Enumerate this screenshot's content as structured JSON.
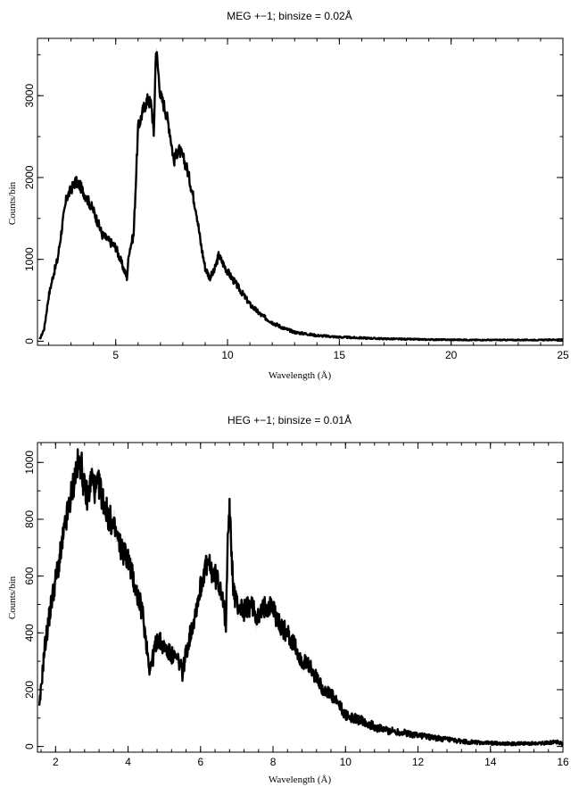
{
  "chart_data": [
    {
      "type": "line",
      "title": "MEG +−1; binsize = 0.02Å",
      "xlabel": "Wavelength (Å)",
      "ylabel": "Counts/bin",
      "xlim": [
        1.5,
        25
      ],
      "ylim": [
        -50,
        3700
      ],
      "xticks": [
        5,
        10,
        15,
        20,
        25
      ],
      "xtick_labels": [
        "5",
        "10",
        "15",
        "20",
        "25"
      ],
      "yticks": [
        0,
        1000,
        2000,
        3000
      ],
      "ytick_labels": [
        "0",
        "1000",
        "2000",
        "3000"
      ],
      "grid": false,
      "series": [
        {
          "x": [
            1.6,
            1.8,
            2.0,
            2.2,
            2.4,
            2.6,
            2.8,
            3.0,
            3.2,
            3.4,
            3.6,
            3.8,
            4.0,
            4.2,
            4.4,
            4.6,
            4.8,
            5.0,
            5.2,
            5.4,
            5.5,
            5.6,
            5.8,
            6.0,
            6.1,
            6.2,
            6.4,
            6.6,
            6.7,
            6.8,
            6.85,
            7.0,
            7.2,
            7.4,
            7.6,
            7.8,
            8.0,
            8.2,
            8.4,
            8.6,
            8.8,
            9.0,
            9.2,
            9.4,
            9.6,
            9.8,
            10.0,
            10.5,
            11.0,
            11.5,
            12.0,
            12.5,
            13.0,
            14.0,
            15.0,
            16.0,
            17.0,
            18.0,
            19.0,
            20.0,
            21.0,
            22.0,
            23.0,
            24.0,
            25.0
          ],
          "y": [
            20,
            150,
            550,
            800,
            1000,
            1400,
            1750,
            1850,
            1950,
            1900,
            1800,
            1700,
            1600,
            1450,
            1300,
            1250,
            1200,
            1150,
            1000,
            850,
            780,
            1100,
            1300,
            2600,
            2700,
            2800,
            2950,
            2900,
            2500,
            3600,
            3450,
            3000,
            2850,
            2600,
            2200,
            2350,
            2250,
            2100,
            1850,
            1600,
            1200,
            900,
            780,
            850,
            1050,
            950,
            850,
            650,
            450,
            320,
            230,
            160,
            110,
            70,
            50,
            40,
            30,
            25,
            20,
            18,
            15,
            15,
            15,
            15,
            20
          ]
        }
      ]
    },
    {
      "type": "line",
      "title": "HEG +−1; binsize = 0.01Å",
      "xlabel": "Wavelength (Å)",
      "ylabel": "Counts/bin",
      "xlim": [
        1.5,
        16
      ],
      "ylim": [
        -20,
        1070
      ],
      "xticks": [
        2,
        4,
        6,
        8,
        10,
        12,
        14,
        16
      ],
      "xtick_labels": [
        "2",
        "4",
        "6",
        "8",
        "10",
        "12",
        "14",
        "16"
      ],
      "yticks": [
        0,
        200,
        400,
        600,
        800,
        1000
      ],
      "ytick_labels": [
        "0",
        "200",
        "400",
        "600",
        "800",
        "1000"
      ],
      "grid": false,
      "series": [
        {
          "x": [
            1.55,
            1.7,
            1.9,
            2.1,
            2.3,
            2.5,
            2.6,
            2.7,
            2.8,
            2.9,
            3.0,
            3.1,
            3.2,
            3.4,
            3.6,
            3.8,
            4.0,
            4.2,
            4.4,
            4.5,
            4.6,
            4.7,
            4.8,
            5.0,
            5.2,
            5.4,
            5.5,
            5.6,
            5.8,
            6.0,
            6.1,
            6.2,
            6.4,
            6.6,
            6.7,
            6.75,
            6.8,
            6.9,
            7.0,
            7.2,
            7.4,
            7.6,
            7.8,
            8.0,
            8.2,
            8.4,
            8.6,
            8.8,
            9.0,
            9.2,
            9.4,
            9.6,
            9.8,
            10.0,
            10.2,
            10.5,
            10.8,
            11.0,
            11.5,
            12.0,
            12.5,
            13.0,
            13.5,
            14.0,
            14.5,
            15.0,
            15.5,
            15.8,
            16.0
          ],
          "y": [
            130,
            350,
            520,
            650,
            800,
            930,
            990,
            1000,
            900,
            880,
            950,
            900,
            920,
            830,
            770,
            700,
            660,
            560,
            470,
            370,
            270,
            320,
            380,
            350,
            320,
            300,
            260,
            330,
            440,
            560,
            620,
            640,
            600,
            550,
            400,
            780,
            830,
            560,
            500,
            480,
            500,
            450,
            500,
            490,
            420,
            400,
            350,
            300,
            280,
            240,
            200,
            180,
            150,
            110,
            100,
            90,
            70,
            60,
            50,
            40,
            30,
            20,
            15,
            12,
            10,
            10,
            12,
            18,
            10
          ]
        }
      ]
    }
  ]
}
